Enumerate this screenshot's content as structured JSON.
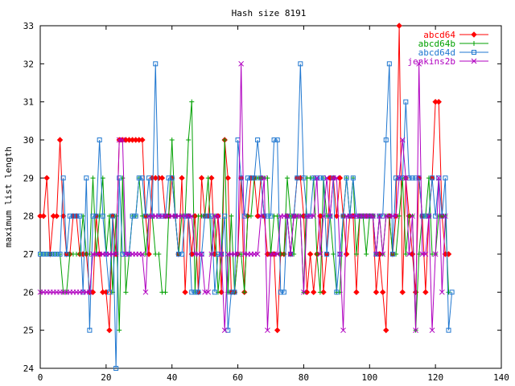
{
  "chart_data": {
    "type": "line",
    "title": "Hash size 8191",
    "xlabel": "",
    "ylabel": "maximum list length",
    "xlim": [
      0,
      140
    ],
    "ylim": [
      24,
      33
    ],
    "xticks": [
      0,
      20,
      40,
      60,
      80,
      100,
      120,
      140
    ],
    "yticks": [
      24,
      25,
      26,
      27,
      28,
      29,
      30,
      31,
      32,
      33
    ],
    "legend_position": "top-right",
    "grid": false,
    "series": [
      {
        "name": "abcd64",
        "color": "#ff0000",
        "marker": "diamond",
        "values": [
          28,
          28,
          29,
          27,
          28,
          28,
          30,
          28,
          27,
          27,
          28,
          28,
          27,
          27,
          27,
          26,
          26,
          28,
          27,
          26,
          26,
          25,
          28,
          27,
          30,
          30,
          30,
          30,
          30,
          30,
          30,
          30,
          28,
          27,
          29,
          29,
          29,
          29,
          28,
          28,
          29,
          28,
          27,
          29,
          26,
          28,
          27,
          28,
          26,
          29,
          28,
          28,
          29,
          27,
          28,
          26,
          30,
          29,
          26,
          26,
          27,
          29,
          26,
          28,
          29,
          29,
          28,
          29,
          28,
          27,
          27,
          27,
          25,
          27,
          27,
          28,
          27,
          28,
          29,
          29,
          28,
          26,
          27,
          26,
          27,
          28,
          26,
          27,
          29,
          29,
          28,
          29,
          28,
          27,
          28,
          28,
          26,
          28,
          28,
          28,
          28,
          28,
          26,
          27,
          26,
          25,
          28,
          27,
          28,
          33,
          26,
          29,
          28,
          27,
          26,
          29,
          28,
          26,
          28,
          29,
          31,
          31,
          28,
          27,
          27
        ]
      },
      {
        "name": "abcd64b",
        "color": "#00a000",
        "marker": "plus",
        "values": [
          27,
          27,
          27,
          27,
          27,
          27,
          27,
          26,
          26,
          27,
          27,
          27,
          27,
          28,
          27,
          27,
          29,
          27,
          28,
          29,
          27,
          28,
          26,
          28,
          25,
          29,
          26,
          27,
          28,
          28,
          29,
          28,
          27,
          28,
          28,
          27,
          27,
          26,
          26,
          28,
          30,
          28,
          27,
          28,
          28,
          30,
          31,
          26,
          28,
          28,
          28,
          29,
          27,
          28,
          26,
          27,
          30,
          26,
          28,
          26,
          27,
          27,
          26,
          28,
          28,
          29,
          29,
          29,
          29,
          29,
          27,
          28,
          28,
          27,
          27,
          29,
          28,
          27,
          28,
          28,
          26,
          29,
          29,
          29,
          27,
          26,
          29,
          28,
          28,
          27,
          26,
          26,
          28,
          29,
          28,
          29,
          27,
          28,
          28,
          27,
          28,
          28,
          27,
          28,
          27,
          28,
          28,
          27,
          27,
          28,
          29,
          27,
          28,
          28,
          25,
          27,
          28,
          28,
          29,
          27,
          27,
          28,
          28,
          28,
          26
        ]
      },
      {
        "name": "abcd64d",
        "color": "#1f77d0",
        "marker": "square",
        "values": [
          27,
          27,
          27,
          27,
          27,
          27,
          27,
          29,
          27,
          28,
          28,
          28,
          28,
          26,
          29,
          25,
          28,
          28,
          30,
          28,
          27,
          26,
          28,
          24,
          29,
          27,
          27,
          27,
          28,
          28,
          29,
          29,
          28,
          29,
          28,
          32,
          28,
          28,
          28,
          29,
          29,
          28,
          27,
          27,
          28,
          28,
          26,
          26,
          26,
          27,
          28,
          28,
          28,
          26,
          27,
          27,
          28,
          25,
          26,
          26,
          30,
          29,
          28,
          29,
          29,
          29,
          30,
          29,
          28,
          28,
          28,
          30,
          30,
          26,
          26,
          28,
          27,
          28,
          29,
          32,
          29,
          28,
          28,
          29,
          29,
          29,
          29,
          27,
          28,
          29,
          26,
          27,
          28,
          29,
          28,
          29,
          28,
          28,
          28,
          28,
          28,
          28,
          27,
          28,
          28,
          30,
          32,
          27,
          29,
          29,
          29,
          31,
          29,
          29,
          29,
          29,
          28,
          28,
          28,
          29,
          28,
          29,
          28,
          29,
          25,
          26
        ]
      },
      {
        "name": "jenkins2b",
        "color": "#b000c0",
        "marker": "cross",
        "values": [
          26,
          26,
          26,
          26,
          26,
          26,
          26,
          26,
          26,
          26,
          26,
          26,
          26,
          26,
          26,
          26,
          27,
          27,
          27,
          27,
          27,
          27,
          27,
          27,
          30,
          30,
          27,
          27,
          27,
          27,
          27,
          27,
          26,
          28,
          28,
          28,
          28,
          28,
          28,
          28,
          28,
          28,
          28,
          28,
          28,
          28,
          28,
          27,
          27,
          27,
          26,
          26,
          27,
          28,
          28,
          27,
          25,
          27,
          27,
          27,
          27,
          32,
          27,
          27,
          27,
          27,
          27,
          28,
          29,
          25,
          27,
          27,
          27,
          28,
          28,
          28,
          27,
          28,
          28,
          28,
          26,
          28,
          28,
          28,
          29,
          27,
          28,
          29,
          28,
          29,
          29,
          27,
          25,
          28,
          28,
          28,
          28,
          28,
          28,
          28,
          28,
          28,
          27,
          28,
          27,
          28,
          28,
          28,
          28,
          29,
          30,
          29,
          27,
          28,
          25,
          32,
          27,
          27,
          28,
          25,
          27,
          29,
          26,
          28
        ]
      }
    ]
  }
}
